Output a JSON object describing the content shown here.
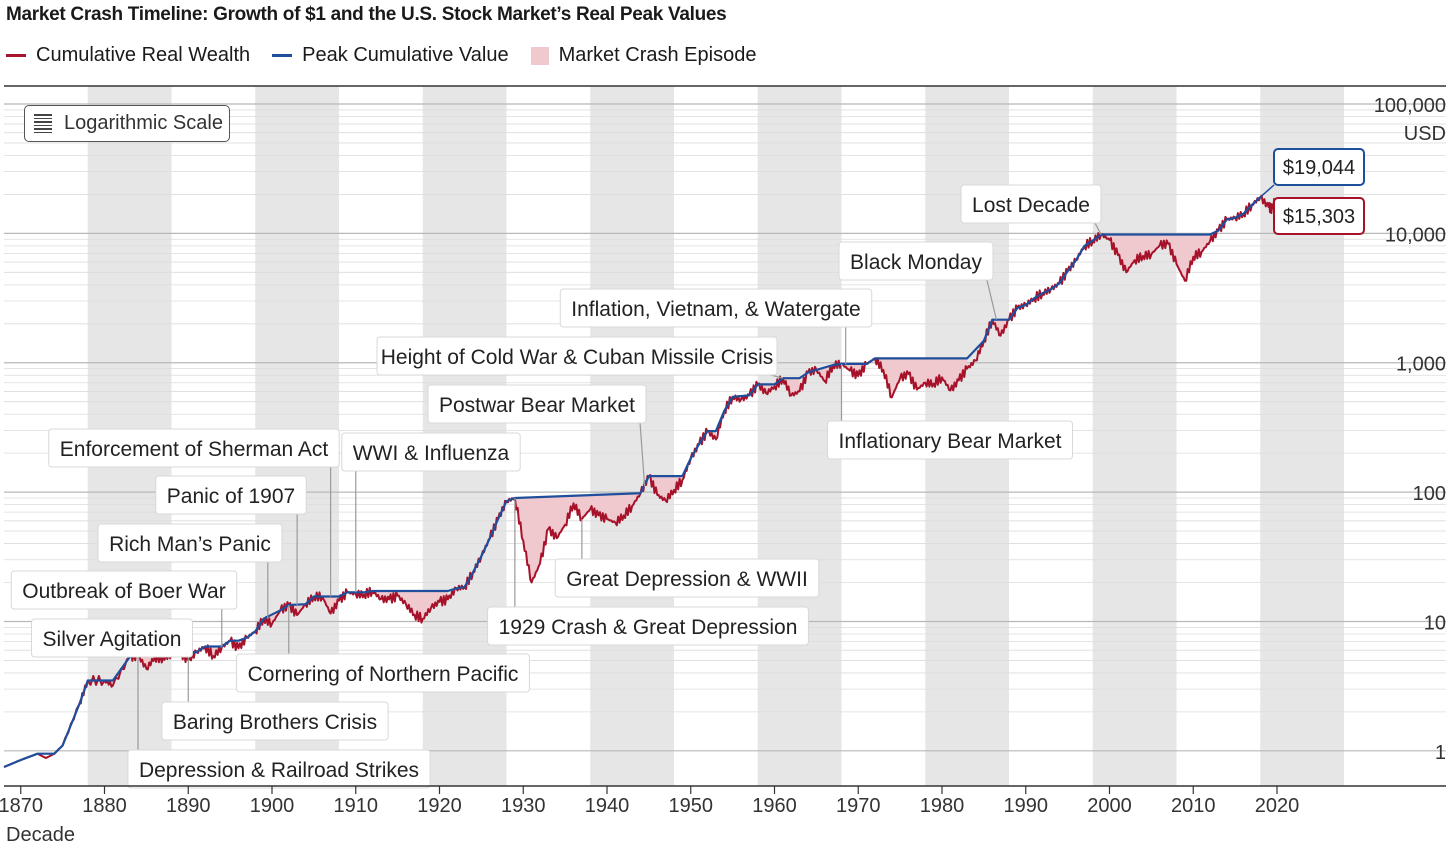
{
  "chart_data": {
    "type": "line",
    "title": "Market Crash Timeline: Growth of $1 and the U.S. Stock Market’s Real Peak Values",
    "xlabel": "Decade",
    "ylabel": "USD",
    "xlim": [
      1868,
      2028
    ],
    "ylim": [
      0.75,
      100000
    ],
    "yscale": "log",
    "scale_button": "Logarithmic Scale",
    "x_ticks": [
      "1870",
      "1880",
      "1890",
      "1900",
      "1910",
      "1920",
      "1930",
      "1940",
      "1950",
      "1960",
      "1970",
      "1980",
      "1990",
      "2000",
      "2010",
      "2020"
    ],
    "y_ticks": [
      {
        "value": 1,
        "label": "1"
      },
      {
        "value": 10,
        "label": "10"
      },
      {
        "value": 100,
        "label": "100"
      },
      {
        "value": 1000,
        "label": "1,000"
      },
      {
        "value": 10000,
        "label": "10,000"
      },
      {
        "value": 100000,
        "label": "100,000"
      }
    ],
    "colors": {
      "wealth": "#a5122a",
      "peak": "#1f4e9c",
      "crash_fill": "#f0c9ce",
      "band": "#e6e6e6",
      "grid": "#c8c8c8"
    },
    "legend": [
      {
        "name": "Cumulative Real Wealth",
        "kind": "line",
        "color": "#a5122a"
      },
      {
        "name": "Peak Cumulative Value",
        "kind": "line",
        "color": "#1f4e9c"
      },
      {
        "name": "Market Crash Episode",
        "kind": "box",
        "color": "#f0c9ce"
      }
    ],
    "series": [
      {
        "name": "Cumulative Real Wealth",
        "points": [
          [
            1868,
            0.75
          ],
          [
            1870,
            0.85
          ],
          [
            1872,
            0.95
          ],
          [
            1873,
            0.88
          ],
          [
            1874,
            0.95
          ],
          [
            1875,
            1.1
          ],
          [
            1877,
            2.3
          ],
          [
            1878,
            3.5
          ],
          [
            1880,
            3.5
          ],
          [
            1881,
            3.2
          ],
          [
            1883,
            5.3
          ],
          [
            1884,
            5.5
          ],
          [
            1885,
            4.3
          ],
          [
            1886,
            5.3
          ],
          [
            1887,
            5.2
          ],
          [
            1888,
            5.5
          ],
          [
            1889,
            5.8
          ],
          [
            1890,
            5.0
          ],
          [
            1891,
            5.8
          ],
          [
            1892,
            6.4
          ],
          [
            1893,
            5.4
          ],
          [
            1894,
            6.3
          ],
          [
            1895,
            7.1
          ],
          [
            1896,
            6.2
          ],
          [
            1897,
            7.5
          ],
          [
            1898,
            8.4
          ],
          [
            1899,
            10.5
          ],
          [
            1900,
            9.6
          ],
          [
            1901,
            12.2
          ],
          [
            1902,
            13.4
          ],
          [
            1903,
            11.2
          ],
          [
            1904,
            13.6
          ],
          [
            1905,
            15.6
          ],
          [
            1906,
            15.6
          ],
          [
            1907,
            11.5
          ],
          [
            1908,
            14.5
          ],
          [
            1909,
            16.8
          ],
          [
            1910,
            16.3
          ],
          [
            1911,
            16.2
          ],
          [
            1912,
            17.2
          ],
          [
            1913,
            14.9
          ],
          [
            1914,
            14.8
          ],
          [
            1915,
            15.8
          ],
          [
            1916,
            13.6
          ],
          [
            1917,
            11.3
          ],
          [
            1918,
            10.5
          ],
          [
            1919,
            12.8
          ],
          [
            1920,
            14.2
          ],
          [
            1921,
            14.8
          ],
          [
            1922,
            18
          ],
          [
            1923,
            18.5
          ],
          [
            1924,
            24
          ],
          [
            1925,
            32
          ],
          [
            1926,
            44
          ],
          [
            1927,
            62
          ],
          [
            1928,
            85
          ],
          [
            1929,
            90
          ],
          [
            1930,
            42
          ],
          [
            1931,
            20
          ],
          [
            1932,
            28
          ],
          [
            1933,
            52
          ],
          [
            1934,
            44
          ],
          [
            1935,
            56
          ],
          [
            1936,
            82
          ],
          [
            1937,
            62
          ],
          [
            1938,
            74
          ],
          [
            1939,
            66
          ],
          [
            1940,
            62
          ],
          [
            1941,
            58
          ],
          [
            1942,
            66
          ],
          [
            1943,
            78
          ],
          [
            1944,
            98
          ],
          [
            1945,
            133
          ],
          [
            1946,
            95
          ],
          [
            1947,
            86
          ],
          [
            1948,
            104
          ],
          [
            1949,
            124
          ],
          [
            1950,
            182
          ],
          [
            1951,
            235
          ],
          [
            1952,
            296
          ],
          [
            1953,
            255
          ],
          [
            1954,
            425
          ],
          [
            1955,
            545
          ],
          [
            1956,
            520
          ],
          [
            1957,
            560
          ],
          [
            1958,
            680
          ],
          [
            1959,
            580
          ],
          [
            1960,
            655
          ],
          [
            1961,
            760
          ],
          [
            1962,
            560
          ],
          [
            1963,
            600
          ],
          [
            1964,
            840
          ],
          [
            1965,
            880
          ],
          [
            1966,
            720
          ],
          [
            1967,
            960
          ],
          [
            1968,
            980
          ],
          [
            1969,
            870
          ],
          [
            1970,
            790
          ],
          [
            1971,
            980
          ],
          [
            1972,
            1080
          ],
          [
            1973,
            880
          ],
          [
            1974,
            540
          ],
          [
            1975,
            760
          ],
          [
            1976,
            820
          ],
          [
            1977,
            620
          ],
          [
            1978,
            700
          ],
          [
            1979,
            690
          ],
          [
            1980,
            770
          ],
          [
            1981,
            610
          ],
          [
            1982,
            730
          ],
          [
            1983,
            900
          ],
          [
            1984,
            1040
          ],
          [
            1985,
            1480
          ],
          [
            1986,
            2150
          ],
          [
            1987,
            1620
          ],
          [
            1988,
            2150
          ],
          [
            1989,
            2650
          ],
          [
            1990,
            2800
          ],
          [
            1991,
            3150
          ],
          [
            1992,
            3450
          ],
          [
            1993,
            3700
          ],
          [
            1994,
            4100
          ],
          [
            1995,
            5100
          ],
          [
            1996,
            6200
          ],
          [
            1997,
            8000
          ],
          [
            1998,
            8800
          ],
          [
            1999,
            9800
          ],
          [
            2000,
            8900
          ],
          [
            2001,
            6800
          ],
          [
            2002,
            5000
          ],
          [
            2003,
            6200
          ],
          [
            2004,
            6700
          ],
          [
            2005,
            6900
          ],
          [
            2006,
            8100
          ],
          [
            2007,
            8300
          ],
          [
            2008,
            5800
          ],
          [
            2009,
            4300
          ],
          [
            2010,
            6600
          ],
          [
            2011,
            7200
          ],
          [
            2012,
            8700
          ],
          [
            2013,
            10500
          ],
          [
            2014,
            12800
          ],
          [
            2015,
            13200
          ],
          [
            2016,
            14200
          ],
          [
            2017,
            16600
          ],
          [
            2018,
            19044
          ],
          [
            2019,
            16000
          ],
          [
            2019.5,
            15303
          ]
        ]
      },
      {
        "name": "Peak Cumulative Value",
        "points": [
          [
            1868,
            0.75
          ],
          [
            1870,
            0.85
          ],
          [
            1872,
            0.95
          ],
          [
            1874,
            0.95
          ],
          [
            1875,
            1.1
          ],
          [
            1877,
            2.3
          ],
          [
            1878,
            3.5
          ],
          [
            1881,
            3.5
          ],
          [
            1883,
            5.3
          ],
          [
            1884,
            5.5
          ],
          [
            1888,
            5.5
          ],
          [
            1889,
            5.8
          ],
          [
            1891,
            5.8
          ],
          [
            1892,
            6.4
          ],
          [
            1894,
            6.4
          ],
          [
            1895,
            7.1
          ],
          [
            1896,
            7.1
          ],
          [
            1897,
            7.5
          ],
          [
            1898,
            8.4
          ],
          [
            1899,
            10.5
          ],
          [
            1901,
            12.2
          ],
          [
            1902,
            13.4
          ],
          [
            1904,
            13.6
          ],
          [
            1905,
            15.6
          ],
          [
            1908,
            15.6
          ],
          [
            1909,
            16.8
          ],
          [
            1911,
            16.8
          ],
          [
            1912,
            17.2
          ],
          [
            1921,
            17.2
          ],
          [
            1922,
            18
          ],
          [
            1923,
            18.5
          ],
          [
            1924,
            24
          ],
          [
            1925,
            32
          ],
          [
            1926,
            44
          ],
          [
            1927,
            62
          ],
          [
            1928,
            85
          ],
          [
            1929,
            90
          ],
          [
            1944,
            98
          ],
          [
            1945,
            133
          ],
          [
            1949,
            133
          ],
          [
            1950,
            182
          ],
          [
            1951,
            235
          ],
          [
            1952,
            296
          ],
          [
            1953,
            296
          ],
          [
            1954,
            425
          ],
          [
            1955,
            545
          ],
          [
            1957,
            560
          ],
          [
            1958,
            680
          ],
          [
            1960,
            680
          ],
          [
            1961,
            760
          ],
          [
            1963,
            760
          ],
          [
            1964,
            840
          ],
          [
            1965,
            880
          ],
          [
            1967,
            960
          ],
          [
            1968,
            980
          ],
          [
            1971,
            980
          ],
          [
            1972,
            1080
          ],
          [
            1983,
            1080
          ],
          [
            1985,
            1480
          ],
          [
            1986,
            2150
          ],
          [
            1988,
            2150
          ],
          [
            1989,
            2650
          ],
          [
            1990,
            2800
          ],
          [
            1991,
            3150
          ],
          [
            1992,
            3450
          ],
          [
            1993,
            3700
          ],
          [
            1994,
            4100
          ],
          [
            1995,
            5100
          ],
          [
            1996,
            6200
          ],
          [
            1997,
            8000
          ],
          [
            1998,
            8800
          ],
          [
            1999,
            9800
          ],
          [
            2012,
            9800
          ],
          [
            2013,
            10500
          ],
          [
            2014,
            12800
          ],
          [
            2015,
            13200
          ],
          [
            2016,
            14200
          ],
          [
            2017,
            16600
          ],
          [
            2018,
            19044
          ]
        ]
      }
    ],
    "decade_bands": [
      [
        1878,
        1888
      ],
      [
        1898,
        1908
      ],
      [
        1918,
        1928
      ],
      [
        1938,
        1948
      ],
      [
        1958,
        1968
      ],
      [
        1978,
        1988
      ],
      [
        1998,
        2008
      ],
      [
        2018,
        2028
      ]
    ],
    "crash_episodes": [
      {
        "start": 1880,
        "end": 1883
      },
      {
        "start": 1884,
        "end": 1888
      },
      {
        "start": 1889,
        "end": 1891
      },
      {
        "start": 1892,
        "end": 1894
      },
      {
        "start": 1895,
        "end": 1897
      },
      {
        "start": 1899,
        "end": 1901
      },
      {
        "start": 1902,
        "end": 1904
      },
      {
        "start": 1905,
        "end": 1908
      },
      {
        "start": 1909,
        "end": 1911
      },
      {
        "start": 1912,
        "end": 1921
      },
      {
        "start": 1929,
        "end": 1944
      },
      {
        "start": 1945,
        "end": 1949
      },
      {
        "start": 1952,
        "end": 1953
      },
      {
        "start": 1955,
        "end": 1957
      },
      {
        "start": 1958,
        "end": 1960
      },
      {
        "start": 1961,
        "end": 1963
      },
      {
        "start": 1965,
        "end": 1967
      },
      {
        "start": 1968,
        "end": 1971
      },
      {
        "start": 1972,
        "end": 1983
      },
      {
        "start": 1986,
        "end": 1988
      },
      {
        "start": 1999,
        "end": 2012
      }
    ],
    "annotations": [
      {
        "text": "Silver Agitation",
        "year": 1883.5,
        "value": 5.4
      },
      {
        "text": "Outbreak of Boer War",
        "year": 1894,
        "value": 6.3
      },
      {
        "text": "Rich Man’s Panic",
        "year": 1899.5,
        "value": 10.5
      },
      {
        "text": "Panic of 1907",
        "year": 1903,
        "value": 13.4
      },
      {
        "text": "Enforcement of Sherman Act",
        "year": 1907,
        "value": 15.6
      },
      {
        "text": "WWI & Influenza",
        "year": 1910,
        "value": 16.8
      },
      {
        "text": "Postwar Bear Market",
        "year": 1944.5,
        "value": 110
      },
      {
        "text": "Height of Cold War & Cuban Missile Crisis",
        "year": 1961,
        "value": 760
      },
      {
        "text": "Inflation, Vietnam, & Watergate",
        "year": 1968.5,
        "value": 970
      },
      {
        "text": "Black Monday",
        "year": 1986.5,
        "value": 2150
      },
      {
        "text": "Lost Decade",
        "year": 1999,
        "value": 9800
      },
      {
        "text": "Baring Brothers Crisis",
        "year": 1890,
        "value": 5.3
      },
      {
        "text": "Depression & Railroad Strikes",
        "year": 1884,
        "value": 5.5
      },
      {
        "text": "Cornering of Northern Pacific",
        "year": 1902,
        "value": 13.4
      },
      {
        "text": "1929 Crash & Great Depression",
        "year": 1929,
        "value": 90
      },
      {
        "text": "Great Depression & WWII",
        "year": 1937,
        "value": 62
      },
      {
        "text": "Inflationary Bear Market",
        "year": 1968,
        "value": 980
      }
    ],
    "end_labels": [
      {
        "text": "$19,044",
        "year": 2018,
        "value": 19044,
        "series": "Peak Cumulative Value"
      },
      {
        "text": "$15,303",
        "year": 2019.5,
        "value": 15303,
        "series": "Cumulative Real Wealth"
      }
    ]
  }
}
